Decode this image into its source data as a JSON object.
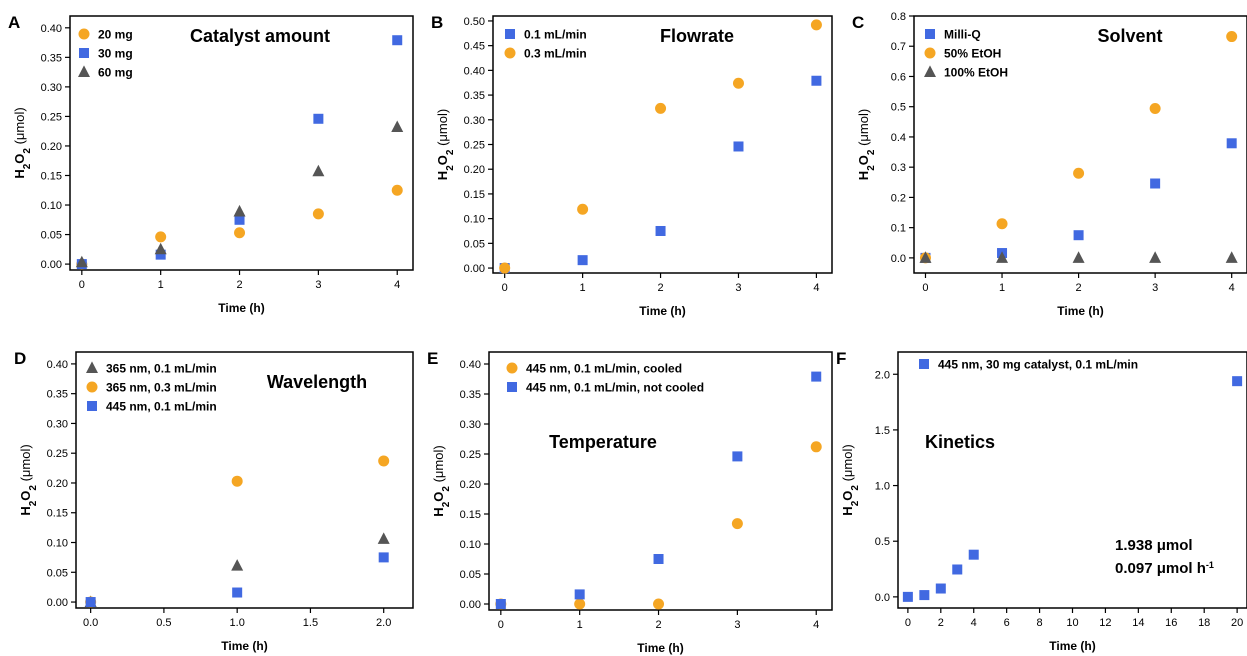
{
  "ylabel": {
    "h": "H",
    "sub2": "2",
    "o": "O",
    "unit": "(μmol)"
  },
  "xlabel": "Time (h)",
  "colors": {
    "orange": "#F5A623",
    "blue": "#4169E1",
    "gray": "#555555"
  },
  "chart_data": [
    {
      "panel": "A",
      "type": "scatter",
      "title": "Catalyst amount",
      "xlabel": "Time (h)",
      "ylabel": "H2O2 (μmol)",
      "xlim": [
        -0.15,
        4.2
      ],
      "ylim": [
        -0.01,
        0.42
      ],
      "xticks": [
        "0",
        "1",
        "2",
        "3",
        "4"
      ],
      "xtick_values": [
        0,
        1,
        2,
        3,
        4
      ],
      "yticks": [
        "0.00",
        "0.05",
        "0.10",
        "0.15",
        "0.20",
        "0.25",
        "0.30",
        "0.35",
        "0.40"
      ],
      "ytick_values": [
        0,
        0.05,
        0.1,
        0.15,
        0.2,
        0.25,
        0.3,
        0.35,
        0.4
      ],
      "legend_position": "top-left",
      "series": [
        {
          "name": "20 mg",
          "marker": "circle",
          "color": "#F5A623",
          "points": [
            [
              0,
              0.0
            ],
            [
              1,
              0.046
            ],
            [
              2,
              0.053
            ],
            [
              3,
              0.085
            ],
            [
              4,
              0.125
            ]
          ]
        },
        {
          "name": "30 mg",
          "marker": "square",
          "color": "#4169E1",
          "points": [
            [
              0,
              0.0
            ],
            [
              1,
              0.016
            ],
            [
              2,
              0.075
            ],
            [
              3,
              0.246
            ],
            [
              4,
              0.379
            ]
          ]
        },
        {
          "name": "60 mg",
          "marker": "triangle",
          "color": "#555555",
          "points": [
            [
              0,
              0.003
            ],
            [
              1,
              0.025
            ],
            [
              2,
              0.089
            ],
            [
              3,
              0.157
            ],
            [
              4,
              0.232
            ]
          ]
        }
      ]
    },
    {
      "panel": "B",
      "type": "scatter",
      "title": "Flowrate",
      "xlabel": "Time (h)",
      "ylabel": "H2O2 (μmol)",
      "xlim": [
        -0.15,
        4.2
      ],
      "ylim": [
        -0.01,
        0.51
      ],
      "xticks": [
        "0",
        "1",
        "2",
        "3",
        "4"
      ],
      "xtick_values": [
        0,
        1,
        2,
        3,
        4
      ],
      "yticks": [
        "0.00",
        "0.05",
        "0.10",
        "0.15",
        "0.20",
        "0.25",
        "0.30",
        "0.35",
        "0.40",
        "0.45",
        "0.50"
      ],
      "ytick_values": [
        0,
        0.05,
        0.1,
        0.15,
        0.2,
        0.25,
        0.3,
        0.35,
        0.4,
        0.45,
        0.5
      ],
      "legend_position": "top-left",
      "series": [
        {
          "name": "0.1 mL/min",
          "marker": "square",
          "color": "#4169E1",
          "points": [
            [
              0,
              0.0
            ],
            [
              1,
              0.016
            ],
            [
              2,
              0.075
            ],
            [
              3,
              0.246
            ],
            [
              4,
              0.379
            ]
          ]
        },
        {
          "name": "0.3 mL/min",
          "marker": "circle",
          "color": "#F5A623",
          "points": [
            [
              0,
              0.0
            ],
            [
              1,
              0.119
            ],
            [
              2,
              0.323
            ],
            [
              3,
              0.374
            ],
            [
              4,
              0.492
            ]
          ]
        }
      ]
    },
    {
      "panel": "C",
      "type": "scatter",
      "title": "Solvent",
      "xlabel": "Time (h)",
      "ylabel": "H2O2 (μmol)",
      "xlim": [
        -0.15,
        4.2
      ],
      "ylim": [
        -0.05,
        0.8
      ],
      "xticks": [
        "0",
        "1",
        "2",
        "3",
        "4"
      ],
      "xtick_values": [
        0,
        1,
        2,
        3,
        4
      ],
      "yticks": [
        "0.0",
        "0.1",
        "0.2",
        "0.3",
        "0.4",
        "0.5",
        "0.6",
        "0.7",
        "0.8"
      ],
      "ytick_values": [
        0,
        0.1,
        0.2,
        0.3,
        0.4,
        0.5,
        0.6,
        0.7,
        0.8
      ],
      "legend_position": "top-left",
      "series": [
        {
          "name": "Milli-Q",
          "marker": "square",
          "color": "#4169E1",
          "points": [
            [
              0,
              0.0
            ],
            [
              1,
              0.016
            ],
            [
              2,
              0.075
            ],
            [
              3,
              0.246
            ],
            [
              4,
              0.379
            ]
          ]
        },
        {
          "name": "50% EtOH",
          "marker": "circle",
          "color": "#F5A623",
          "points": [
            [
              0,
              0.0
            ],
            [
              1,
              0.113
            ],
            [
              2,
              0.28
            ],
            [
              3,
              0.494
            ],
            [
              4,
              0.732
            ]
          ]
        },
        {
          "name": "100% EtOH",
          "marker": "triangle",
          "color": "#555555",
          "points": [
            [
              0,
              0.0
            ],
            [
              1,
              0.0
            ],
            [
              2,
              0.0
            ],
            [
              3,
              0.0
            ],
            [
              4,
              0.0
            ]
          ]
        }
      ]
    },
    {
      "panel": "D",
      "type": "scatter",
      "title": "Wavelength",
      "xlabel": "Time (h)",
      "ylabel": "H2O2 (μmol)",
      "xlim": [
        -0.1,
        2.2
      ],
      "ylim": [
        -0.01,
        0.42
      ],
      "xticks": [
        "0.0",
        "0.5",
        "1.0",
        "1.5",
        "2.0"
      ],
      "xtick_values": [
        0,
        0.5,
        1,
        1.5,
        2
      ],
      "yticks": [
        "0.00",
        "0.05",
        "0.10",
        "0.15",
        "0.20",
        "0.25",
        "0.30",
        "0.35",
        "0.40"
      ],
      "ytick_values": [
        0,
        0.05,
        0.1,
        0.15,
        0.2,
        0.25,
        0.3,
        0.35,
        0.4
      ],
      "legend_position": "top-left",
      "series": [
        {
          "name": "365 nm, 0.1 mL/min",
          "marker": "triangle",
          "color": "#555555",
          "points": [
            [
              0,
              0.0
            ],
            [
              1,
              0.061
            ],
            [
              2,
              0.106
            ]
          ]
        },
        {
          "name": "365 nm, 0.3 mL/min",
          "marker": "circle",
          "color": "#F5A623",
          "points": [
            [
              0,
              0.0
            ],
            [
              1,
              0.203
            ],
            [
              2,
              0.237
            ]
          ]
        },
        {
          "name": "445 nm, 0.1 mL/min",
          "marker": "square",
          "color": "#4169E1",
          "points": [
            [
              0,
              0.0
            ],
            [
              1,
              0.016
            ],
            [
              2,
              0.075
            ]
          ]
        }
      ]
    },
    {
      "panel": "E",
      "type": "scatter",
      "title": "Temperature",
      "xlabel": "Time (h)",
      "ylabel": "H2O2 (μmol)",
      "xlim": [
        -0.15,
        4.2
      ],
      "ylim": [
        -0.01,
        0.42
      ],
      "xticks": [
        "0",
        "1",
        "2",
        "3",
        "4"
      ],
      "xtick_values": [
        0,
        1,
        2,
        3,
        4
      ],
      "yticks": [
        "0.00",
        "0.05",
        "0.10",
        "0.15",
        "0.20",
        "0.25",
        "0.30",
        "0.35",
        "0.40"
      ],
      "ytick_values": [
        0,
        0.05,
        0.1,
        0.15,
        0.2,
        0.25,
        0.3,
        0.35,
        0.4
      ],
      "legend_position": "top-left",
      "series": [
        {
          "name": "445 nm, 0.1 mL/min, cooled",
          "marker": "circle",
          "color": "#F5A623",
          "points": [
            [
              0,
              0.0
            ],
            [
              1,
              0.0
            ],
            [
              2,
              0.0
            ],
            [
              3,
              0.134
            ],
            [
              4,
              0.262
            ]
          ]
        },
        {
          "name": "445 nm, 0.1 mL/min, not cooled",
          "marker": "square",
          "color": "#4169E1",
          "points": [
            [
              0,
              0.0
            ],
            [
              1,
              0.016
            ],
            [
              2,
              0.075
            ],
            [
              3,
              0.246
            ],
            [
              4,
              0.379
            ]
          ]
        }
      ]
    },
    {
      "panel": "F",
      "type": "scatter",
      "title": "Kinetics",
      "xlabel": "Time (h)",
      "ylabel": "H2O2 (μmol)",
      "xlim": [
        -0.6,
        20.6
      ],
      "ylim": [
        -0.1,
        2.2
      ],
      "xticks": [
        "0",
        "2",
        "4",
        "6",
        "8",
        "10",
        "12",
        "14",
        "16",
        "18",
        "20"
      ],
      "xtick_values": [
        0,
        2,
        4,
        6,
        8,
        10,
        12,
        14,
        16,
        18,
        20
      ],
      "yticks": [
        "0.0",
        "0.5",
        "1.0",
        "1.5",
        "2.0"
      ],
      "ytick_values": [
        0,
        0.5,
        1.0,
        1.5,
        2.0
      ],
      "legend_position": "top-left",
      "annotation_lines": [
        "1.938 μmol",
        "0.097 μmol h"
      ],
      "annotation_superscript": "-1",
      "series": [
        {
          "name": "445 nm, 30 mg catalyst, 0.1 mL/min",
          "marker": "square",
          "color": "#4169E1",
          "points": [
            [
              0,
              0.0
            ],
            [
              1,
              0.016
            ],
            [
              2,
              0.075
            ],
            [
              3,
              0.246
            ],
            [
              4,
              0.379
            ],
            [
              20,
              1.938
            ]
          ]
        }
      ]
    }
  ]
}
